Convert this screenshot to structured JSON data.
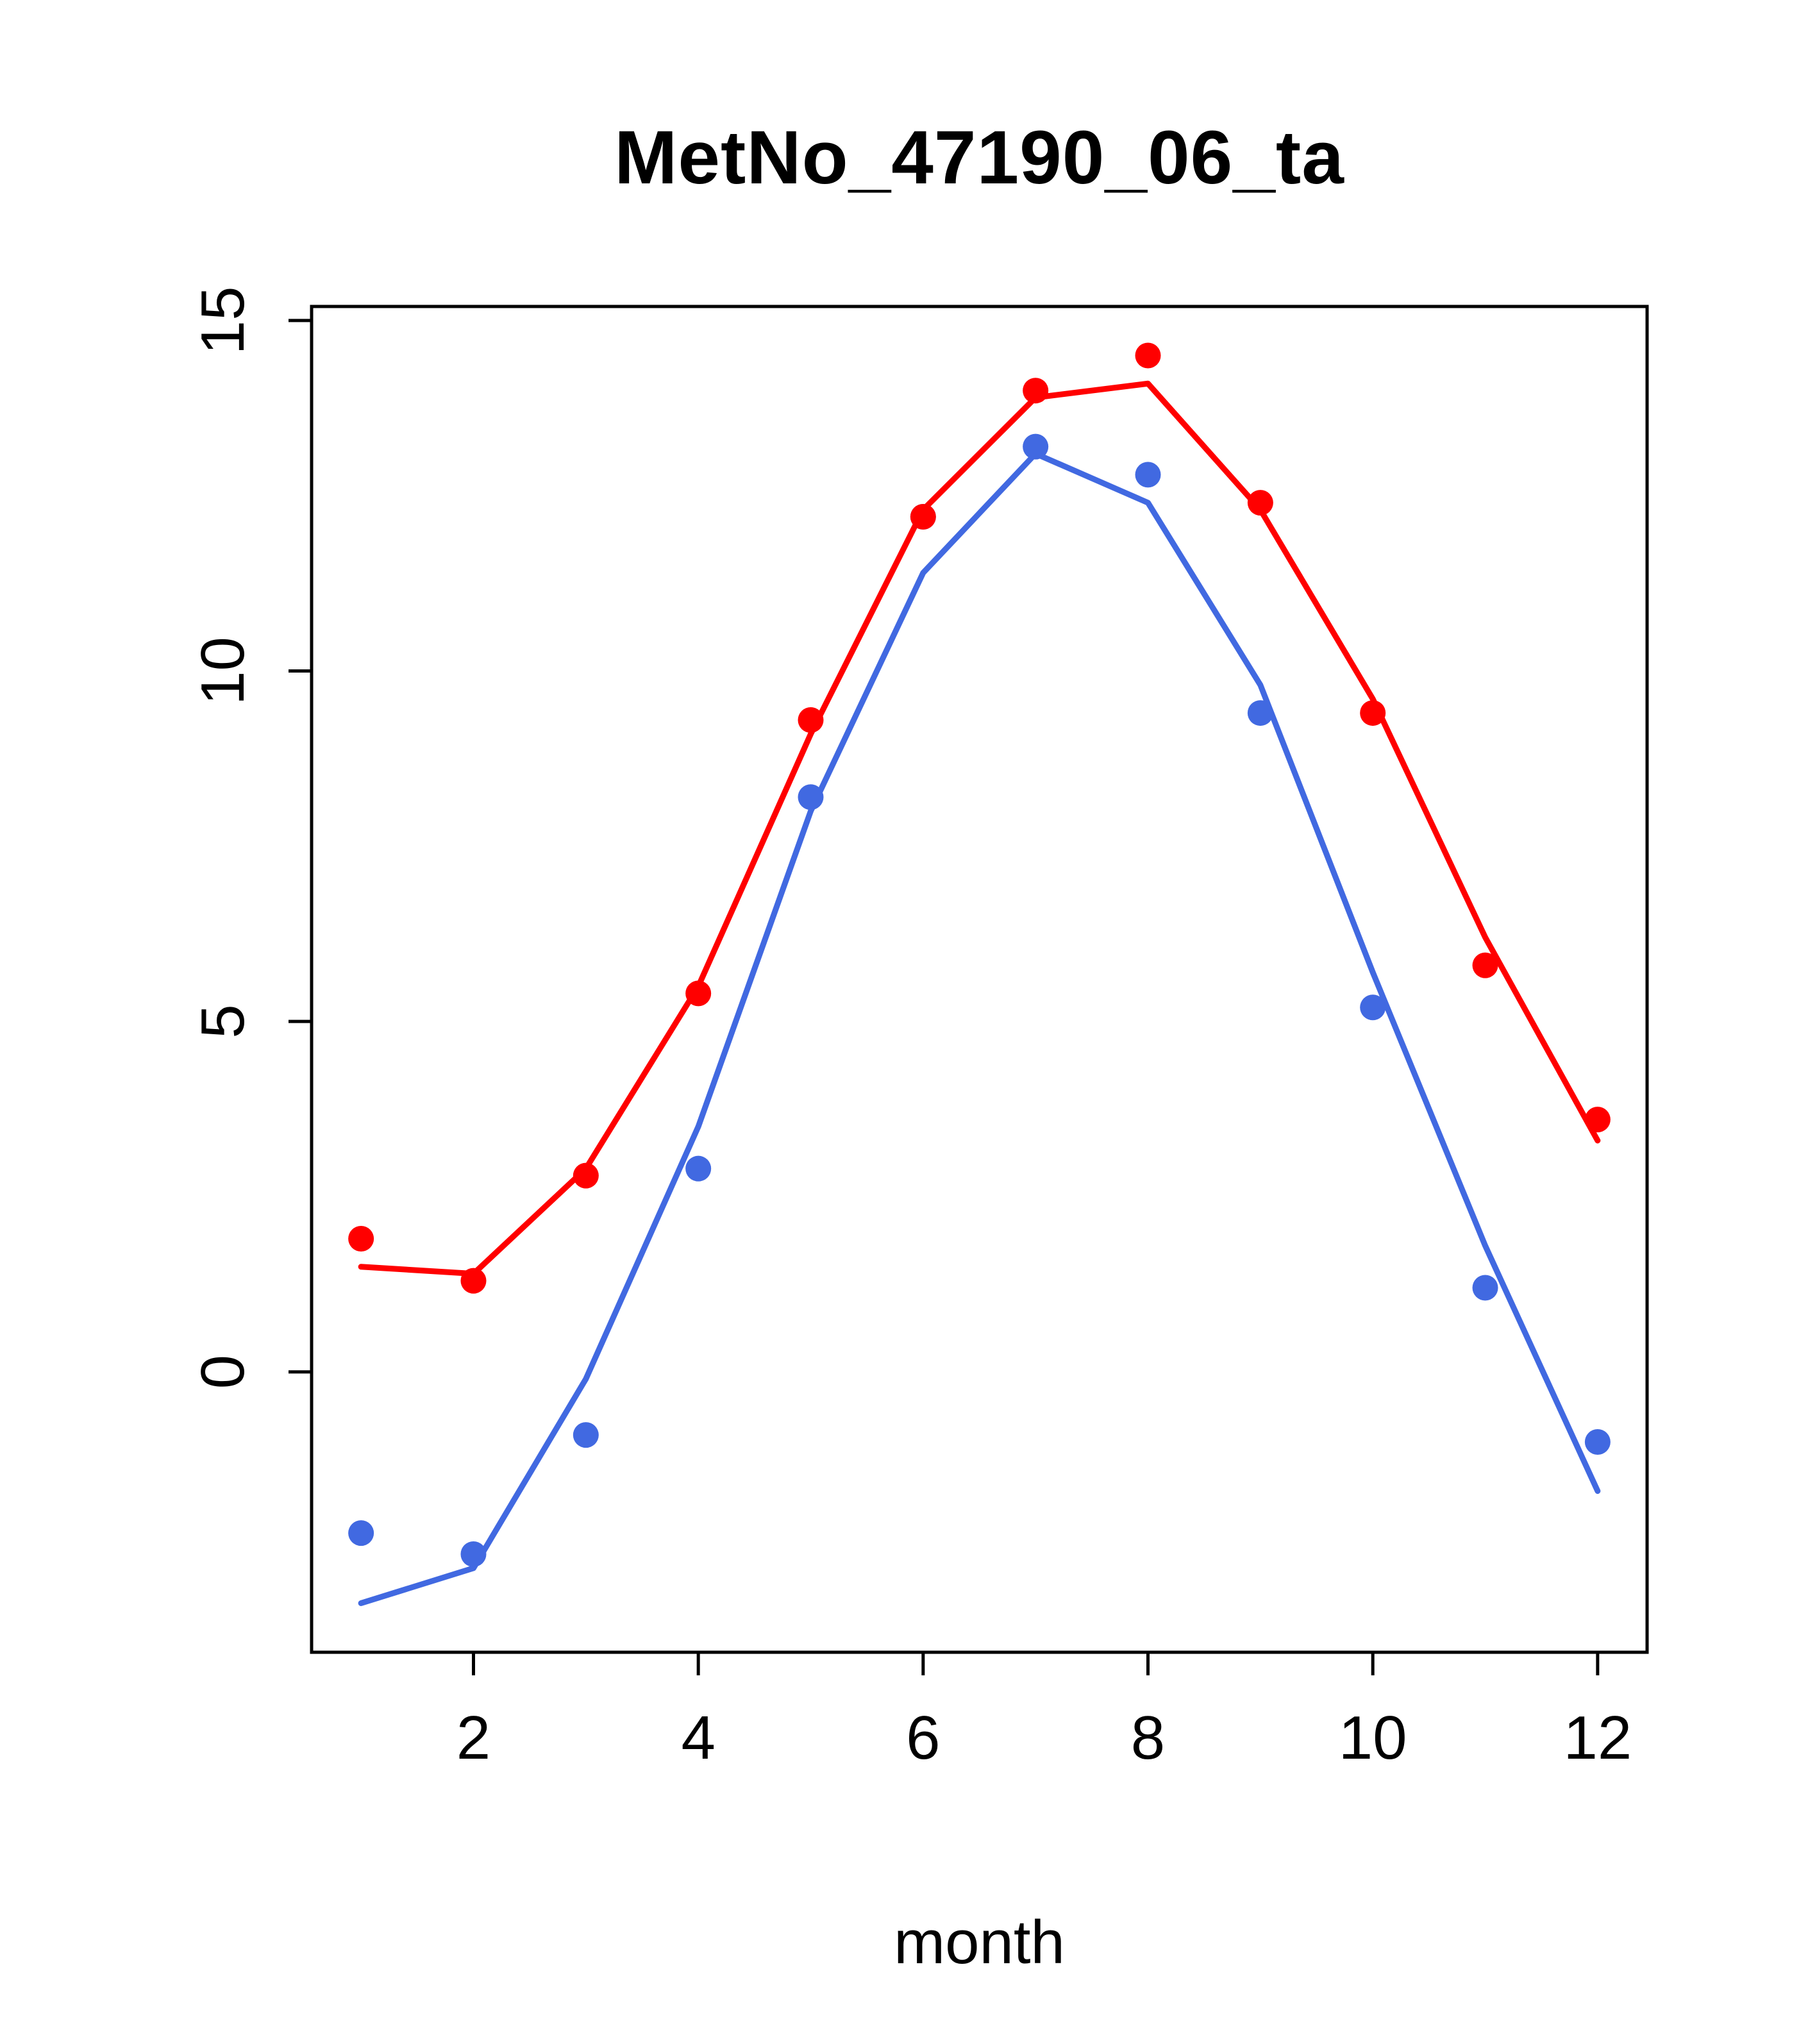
{
  "title": "MetNo_47190_06_ta",
  "xlabel": "month",
  "chart_data": {
    "type": "line",
    "title": "MetNo_47190_06_ta",
    "xlabel": "month",
    "ylabel": "",
    "x": [
      1,
      2,
      3,
      4,
      5,
      6,
      7,
      8,
      9,
      10,
      11,
      12
    ],
    "xlim": [
      0.56,
      12.44
    ],
    "ylim": [
      -4.0,
      15.2
    ],
    "xticks": [
      2,
      4,
      6,
      8,
      10,
      12
    ],
    "yticks": [
      0,
      5,
      10,
      15
    ],
    "grid": false,
    "legend": null,
    "colors": {
      "red": "#ff0000",
      "blue": "#4169e1",
      "axis": "#000000"
    },
    "series": [
      {
        "name": "blue-line",
        "draw": "line",
        "color": "#4169e1",
        "values": [
          -3.3,
          -2.8,
          -0.1,
          3.5,
          8.0,
          11.4,
          13.1,
          12.4,
          9.8,
          5.7,
          1.8,
          -1.7
        ]
      },
      {
        "name": "red-line",
        "draw": "line",
        "color": "#ff0000",
        "values": [
          1.5,
          1.4,
          2.9,
          5.5,
          9.1,
          12.3,
          13.9,
          14.1,
          12.3,
          9.6,
          6.2,
          3.3
        ]
      },
      {
        "name": "blue-points",
        "draw": "points",
        "color": "#4169e1",
        "values": [
          -2.3,
          -2.6,
          -0.9,
          2.9,
          8.2,
          12.2,
          13.2,
          12.8,
          9.4,
          5.2,
          1.2,
          -1.0
        ]
      },
      {
        "name": "red-points",
        "draw": "points",
        "color": "#ff0000",
        "values": [
          1.9,
          1.3,
          2.8,
          5.4,
          9.3,
          12.2,
          14.0,
          14.5,
          12.4,
          9.4,
          5.8,
          3.6
        ]
      }
    ]
  }
}
